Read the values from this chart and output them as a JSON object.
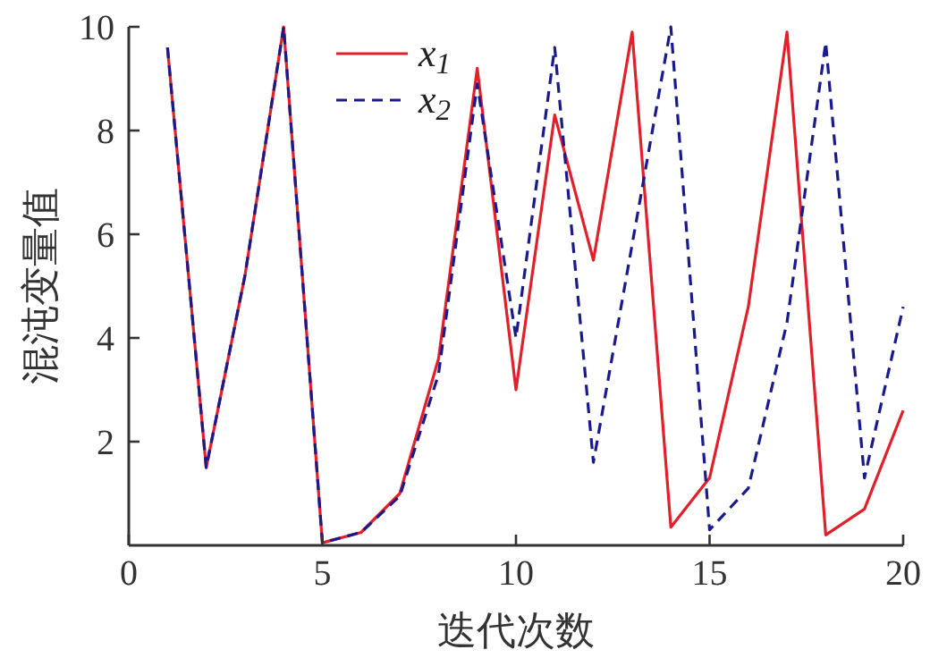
{
  "chart_data": {
    "type": "line",
    "xlabel": "迭代次数",
    "ylabel": "混沌变量值",
    "x": [
      1,
      2,
      3,
      4,
      5,
      6,
      7,
      8,
      9,
      10,
      11,
      12,
      13,
      14,
      15,
      16,
      17,
      18,
      19,
      20
    ],
    "xlim": [
      0,
      20
    ],
    "xticks": [
      0,
      5,
      10,
      15,
      20
    ],
    "ylim": [
      0,
      10
    ],
    "yticks": [
      2,
      4,
      6,
      8,
      10
    ],
    "grid": false,
    "legend": "top",
    "series": [
      {
        "name": "x$_{1}$",
        "color": "#e0202a",
        "line_style": "solid",
        "values": [
          9.6,
          1.5,
          5.2,
          10,
          0.05,
          0.25,
          1.0,
          3.6,
          9.2,
          3.0,
          8.3,
          5.5,
          9.9,
          0.35,
          1.3,
          4.6,
          9.9,
          0.2,
          0.7,
          2.6
        ]
      },
      {
        "name": "x$_{2}$",
        "color": "#1a1a8c",
        "line_style": "dashed",
        "values": [
          9.6,
          1.5,
          5.2,
          10,
          0.05,
          0.25,
          0.95,
          3.3,
          8.9,
          4.0,
          9.6,
          1.6,
          5.8,
          10,
          0.3,
          1.1,
          4.3,
          9.7,
          1.3,
          4.6
        ]
      }
    ]
  }
}
